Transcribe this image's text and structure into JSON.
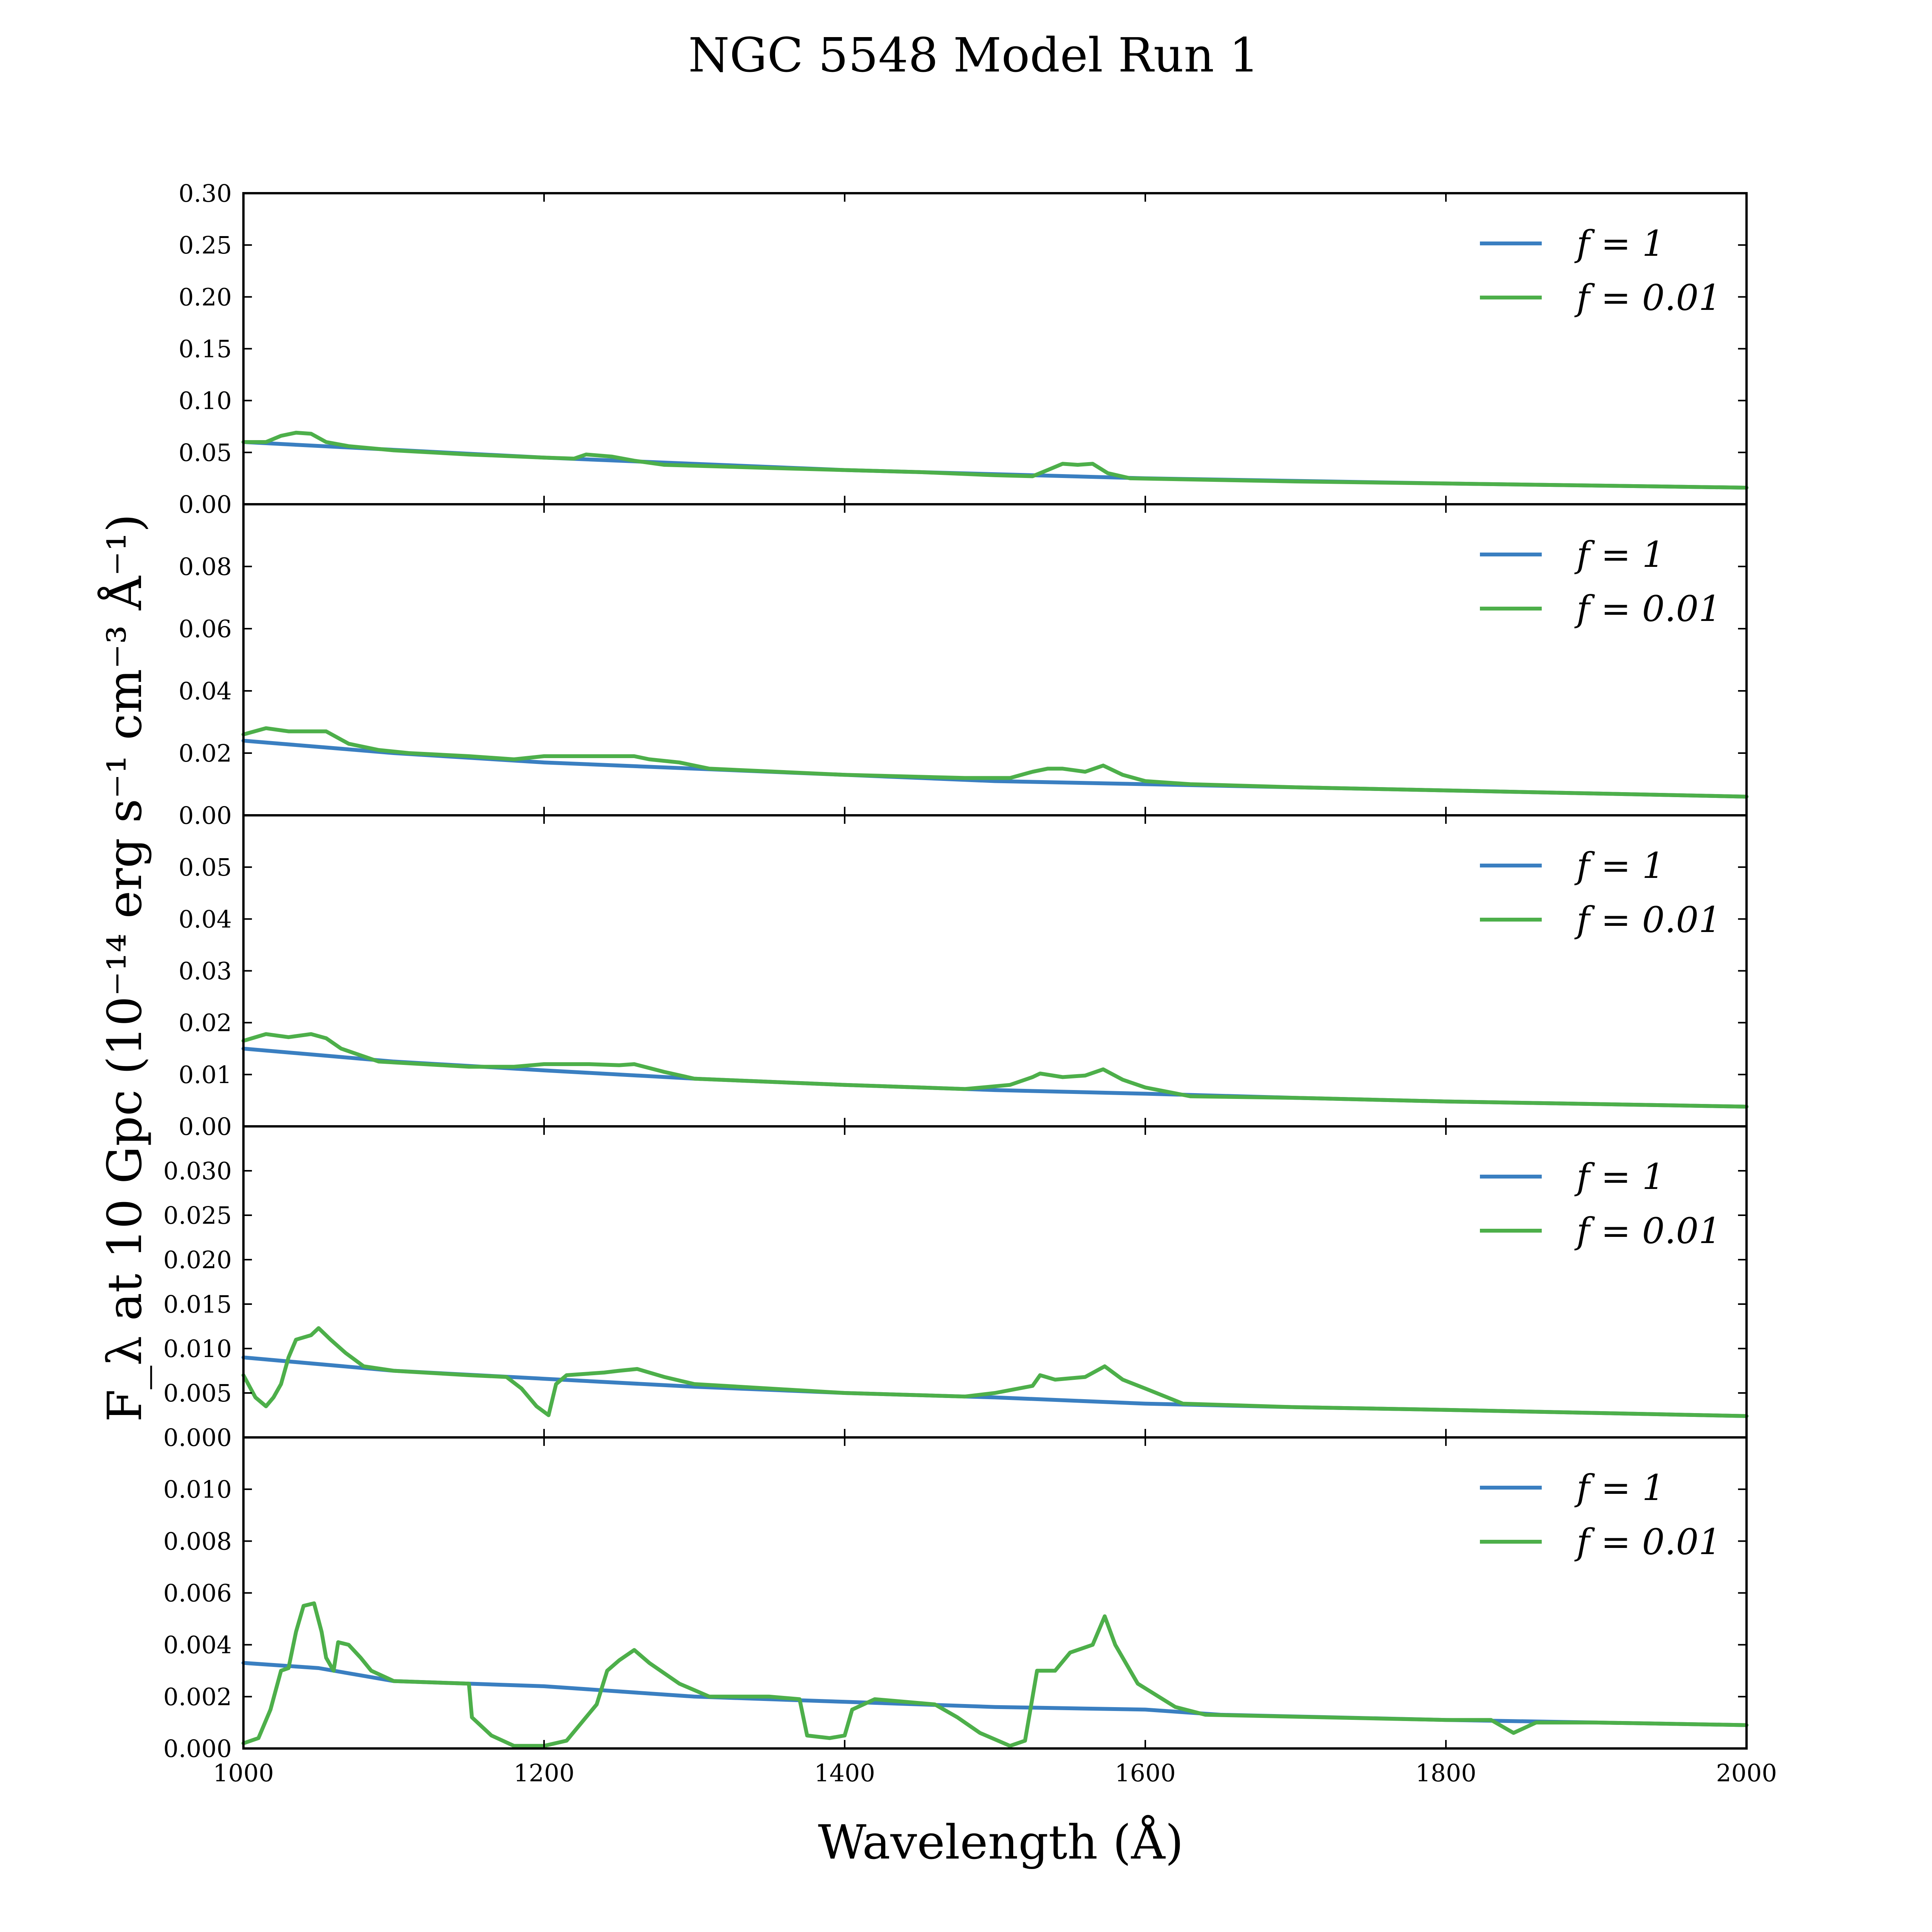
{
  "title": "NGC 5548 Model Run 1",
  "xlabel": "Wavelength (Å)",
  "ylabel": "F_λ at 10 Gpc (10⁻¹⁴ erg s⁻¹ cm⁻³ Å⁻¹)",
  "x_ticks": [
    "1000",
    "1200",
    "1400",
    "1600",
    "1800",
    "2000"
  ],
  "legend_entries": [
    "f = 1",
    "f = 0.01"
  ],
  "colors": {
    "f1": "#3a7fc1",
    "f001": "#4daf4a"
  },
  "chart_data": [
    {
      "type": "line",
      "xlim": [
        1000,
        2000
      ],
      "ylim": [
        0,
        0.3
      ],
      "ticks": [
        0.0,
        0.05,
        0.1,
        0.15,
        0.2,
        0.25,
        0.3
      ],
      "decimals": 2,
      "legend_position": "top-right",
      "grid": false,
      "series": [
        {
          "name": "f = 1",
          "color": "#3a7fc1",
          "points": [
            [
              1000,
              0.06
            ],
            [
              1200,
              0.045
            ],
            [
              1400,
              0.033
            ],
            [
              1600,
              0.025
            ],
            [
              1800,
              0.02
            ],
            [
              2000,
              0.016
            ]
          ]
        },
        {
          "name": "f = 0.01",
          "color": "#4daf4a",
          "points": [
            [
              1000,
              0.06
            ],
            [
              1015,
              0.06
            ],
            [
              1025,
              0.066
            ],
            [
              1035,
              0.069
            ],
            [
              1045,
              0.068
            ],
            [
              1055,
              0.06
            ],
            [
              1070,
              0.056
            ],
            [
              1100,
              0.052
            ],
            [
              1150,
              0.048
            ],
            [
              1200,
              0.045
            ],
            [
              1220,
              0.044
            ],
            [
              1228,
              0.048
            ],
            [
              1245,
              0.046
            ],
            [
              1260,
              0.042
            ],
            [
              1280,
              0.038
            ],
            [
              1350,
              0.035
            ],
            [
              1450,
              0.031
            ],
            [
              1500,
              0.028
            ],
            [
              1525,
              0.027
            ],
            [
              1535,
              0.033
            ],
            [
              1545,
              0.039
            ],
            [
              1555,
              0.038
            ],
            [
              1565,
              0.039
            ],
            [
              1575,
              0.03
            ],
            [
              1590,
              0.025
            ],
            [
              1700,
              0.022
            ],
            [
              1800,
              0.02
            ],
            [
              2000,
              0.016
            ]
          ]
        }
      ]
    },
    {
      "type": "line",
      "xlim": [
        1000,
        2000
      ],
      "ylim": [
        0,
        0.1
      ],
      "ticks": [
        0.0,
        0.02,
        0.04,
        0.06,
        0.08
      ],
      "decimals": 2,
      "legend_position": "top-right",
      "grid": false,
      "series": [
        {
          "name": "f = 1",
          "color": "#3a7fc1",
          "points": [
            [
              1000,
              0.024
            ],
            [
              1100,
              0.02
            ],
            [
              1200,
              0.017
            ],
            [
              1300,
              0.015
            ],
            [
              1400,
              0.013
            ],
            [
              1500,
              0.011
            ],
            [
              1600,
              0.01
            ],
            [
              1700,
              0.009
            ],
            [
              1800,
              0.008
            ],
            [
              2000,
              0.006
            ]
          ]
        },
        {
          "name": "f = 0.01",
          "color": "#4daf4a",
          "points": [
            [
              1000,
              0.026
            ],
            [
              1015,
              0.028
            ],
            [
              1030,
              0.027
            ],
            [
              1045,
              0.027
            ],
            [
              1055,
              0.027
            ],
            [
              1070,
              0.023
            ],
            [
              1090,
              0.021
            ],
            [
              1110,
              0.02
            ],
            [
              1150,
              0.019
            ],
            [
              1180,
              0.018
            ],
            [
              1200,
              0.019
            ],
            [
              1230,
              0.019
            ],
            [
              1250,
              0.019
            ],
            [
              1260,
              0.019
            ],
            [
              1270,
              0.018
            ],
            [
              1290,
              0.017
            ],
            [
              1310,
              0.015
            ],
            [
              1400,
              0.013
            ],
            [
              1480,
              0.012
            ],
            [
              1510,
              0.012
            ],
            [
              1525,
              0.014
            ],
            [
              1535,
              0.015
            ],
            [
              1545,
              0.015
            ],
            [
              1560,
              0.014
            ],
            [
              1572,
              0.016
            ],
            [
              1585,
              0.013
            ],
            [
              1600,
              0.011
            ],
            [
              1630,
              0.01
            ],
            [
              1700,
              0.009
            ],
            [
              1800,
              0.008
            ],
            [
              2000,
              0.006
            ]
          ]
        }
      ]
    },
    {
      "type": "line",
      "xlim": [
        1000,
        2000
      ],
      "ylim": [
        0,
        0.06
      ],
      "ticks": [
        0.0,
        0.01,
        0.02,
        0.03,
        0.04,
        0.05
      ],
      "decimals": 2,
      "legend_position": "top-right",
      "grid": false,
      "series": [
        {
          "name": "f = 1",
          "color": "#3a7fc1",
          "points": [
            [
              1000,
              0.015
            ],
            [
              1100,
              0.0125
            ],
            [
              1200,
              0.0108
            ],
            [
              1300,
              0.0092
            ],
            [
              1400,
              0.008
            ],
            [
              1500,
              0.007
            ],
            [
              1600,
              0.0063
            ],
            [
              1700,
              0.0055
            ],
            [
              1800,
              0.0048
            ],
            [
              2000,
              0.0038
            ]
          ]
        },
        {
          "name": "f = 0.01",
          "color": "#4daf4a",
          "points": [
            [
              1000,
              0.0165
            ],
            [
              1015,
              0.0178
            ],
            [
              1030,
              0.0172
            ],
            [
              1045,
              0.0178
            ],
            [
              1055,
              0.017
            ],
            [
              1065,
              0.015
            ],
            [
              1090,
              0.0125
            ],
            [
              1150,
              0.0115
            ],
            [
              1180,
              0.0115
            ],
            [
              1200,
              0.012
            ],
            [
              1230,
              0.012
            ],
            [
              1250,
              0.0118
            ],
            [
              1260,
              0.012
            ],
            [
              1280,
              0.0105
            ],
            [
              1300,
              0.0092
            ],
            [
              1400,
              0.008
            ],
            [
              1480,
              0.0072
            ],
            [
              1510,
              0.008
            ],
            [
              1525,
              0.0095
            ],
            [
              1530,
              0.0102
            ],
            [
              1545,
              0.0095
            ],
            [
              1560,
              0.0098
            ],
            [
              1572,
              0.011
            ],
            [
              1585,
              0.009
            ],
            [
              1600,
              0.0075
            ],
            [
              1630,
              0.0058
            ],
            [
              1700,
              0.0055
            ],
            [
              1800,
              0.0048
            ],
            [
              2000,
              0.0038
            ]
          ]
        }
      ]
    },
    {
      "type": "line",
      "xlim": [
        1000,
        2000
      ],
      "ylim": [
        0,
        0.035
      ],
      "ticks": [
        0.0,
        0.005,
        0.01,
        0.015,
        0.02,
        0.025,
        0.03
      ],
      "decimals": 3,
      "legend_position": "top-right",
      "grid": false,
      "series": [
        {
          "name": "f = 1",
          "color": "#3a7fc1",
          "points": [
            [
              1000,
              0.009
            ],
            [
              1100,
              0.0075
            ],
            [
              1200,
              0.0066
            ],
            [
              1300,
              0.0057
            ],
            [
              1400,
              0.005
            ],
            [
              1500,
              0.0045
            ],
            [
              1600,
              0.0038
            ],
            [
              1700,
              0.0034
            ],
            [
              1800,
              0.0031
            ],
            [
              2000,
              0.0024
            ]
          ]
        },
        {
          "name": "f = 0.01",
          "color": "#4daf4a",
          "points": [
            [
              1000,
              0.007
            ],
            [
              1008,
              0.0045
            ],
            [
              1015,
              0.0035
            ],
            [
              1020,
              0.0045
            ],
            [
              1025,
              0.006
            ],
            [
              1030,
              0.009
            ],
            [
              1035,
              0.011
            ],
            [
              1045,
              0.0115
            ],
            [
              1050,
              0.0123
            ],
            [
              1058,
              0.011
            ],
            [
              1068,
              0.0095
            ],
            [
              1080,
              0.008
            ],
            [
              1100,
              0.0075
            ],
            [
              1150,
              0.007
            ],
            [
              1175,
              0.0068
            ],
            [
              1185,
              0.0055
            ],
            [
              1195,
              0.0035
            ],
            [
              1203,
              0.0025
            ],
            [
              1208,
              0.006
            ],
            [
              1215,
              0.007
            ],
            [
              1240,
              0.0073
            ],
            [
              1250,
              0.0075
            ],
            [
              1262,
              0.0077
            ],
            [
              1280,
              0.0068
            ],
            [
              1300,
              0.006
            ],
            [
              1400,
              0.005
            ],
            [
              1480,
              0.0046
            ],
            [
              1500,
              0.005
            ],
            [
              1525,
              0.0058
            ],
            [
              1530,
              0.007
            ],
            [
              1540,
              0.0065
            ],
            [
              1560,
              0.0068
            ],
            [
              1573,
              0.008
            ],
            [
              1585,
              0.0065
            ],
            [
              1600,
              0.0055
            ],
            [
              1625,
              0.0038
            ],
            [
              1700,
              0.0034
            ],
            [
              1800,
              0.0031
            ],
            [
              2000,
              0.0024
            ]
          ]
        }
      ]
    },
    {
      "type": "line",
      "xlim": [
        1000,
        2000
      ],
      "ylim": [
        0,
        0.012
      ],
      "ticks": [
        0.0,
        0.002,
        0.004,
        0.006,
        0.008,
        0.01
      ],
      "decimals": 3,
      "legend_position": "top-right",
      "grid": false,
      "series": [
        {
          "name": "f = 1",
          "color": "#3a7fc1",
          "points": [
            [
              1000,
              0.0033
            ],
            [
              1050,
              0.0031
            ],
            [
              1100,
              0.0026
            ],
            [
              1150,
              0.0025
            ],
            [
              1200,
              0.0024
            ],
            [
              1250,
              0.0022
            ],
            [
              1300,
              0.002
            ],
            [
              1400,
              0.0018
            ],
            [
              1500,
              0.0016
            ],
            [
              1600,
              0.0015
            ],
            [
              1650,
              0.0013
            ],
            [
              1800,
              0.0011
            ],
            [
              1900,
              0.001
            ],
            [
              2000,
              0.0009
            ]
          ]
        },
        {
          "name": "f = 0.01",
          "color": "#4daf4a",
          "points": [
            [
              1000,
              0.0002
            ],
            [
              1010,
              0.0004
            ],
            [
              1018,
              0.0015
            ],
            [
              1025,
              0.003
            ],
            [
              1030,
              0.0031
            ],
            [
              1035,
              0.0045
            ],
            [
              1040,
              0.0055
            ],
            [
              1047,
              0.0056
            ],
            [
              1052,
              0.0045
            ],
            [
              1055,
              0.0035
            ],
            [
              1060,
              0.003
            ],
            [
              1063,
              0.0041
            ],
            [
              1070,
              0.004
            ],
            [
              1078,
              0.0035
            ],
            [
              1085,
              0.003
            ],
            [
              1100,
              0.0026
            ],
            [
              1150,
              0.0025
            ],
            [
              1152,
              0.0012
            ],
            [
              1165,
              0.0005
            ],
            [
              1180,
              0.0001
            ],
            [
              1200,
              0.0001
            ],
            [
              1215,
              0.0003
            ],
            [
              1225,
              0.001
            ],
            [
              1235,
              0.0017
            ],
            [
              1242,
              0.003
            ],
            [
              1250,
              0.0034
            ],
            [
              1260,
              0.0038
            ],
            [
              1270,
              0.0033
            ],
            [
              1290,
              0.0025
            ],
            [
              1310,
              0.002
            ],
            [
              1350,
              0.002
            ],
            [
              1370,
              0.0019
            ],
            [
              1375,
              0.0005
            ],
            [
              1390,
              0.0004
            ],
            [
              1400,
              0.0005
            ],
            [
              1405,
              0.0015
            ],
            [
              1420,
              0.0019
            ],
            [
              1460,
              0.0017
            ],
            [
              1475,
              0.0012
            ],
            [
              1490,
              0.0006
            ],
            [
              1510,
              0.0001
            ],
            [
              1520,
              0.0003
            ],
            [
              1528,
              0.003
            ],
            [
              1540,
              0.003
            ],
            [
              1550,
              0.0037
            ],
            [
              1565,
              0.004
            ],
            [
              1573,
              0.0051
            ],
            [
              1580,
              0.004
            ],
            [
              1595,
              0.0025
            ],
            [
              1620,
              0.0016
            ],
            [
              1640,
              0.0013
            ],
            [
              1800,
              0.0011
            ],
            [
              1830,
              0.0011
            ],
            [
              1845,
              0.0006
            ],
            [
              1860,
              0.001
            ],
            [
              1900,
              0.001
            ],
            [
              2000,
              0.0009
            ]
          ]
        }
      ]
    }
  ]
}
